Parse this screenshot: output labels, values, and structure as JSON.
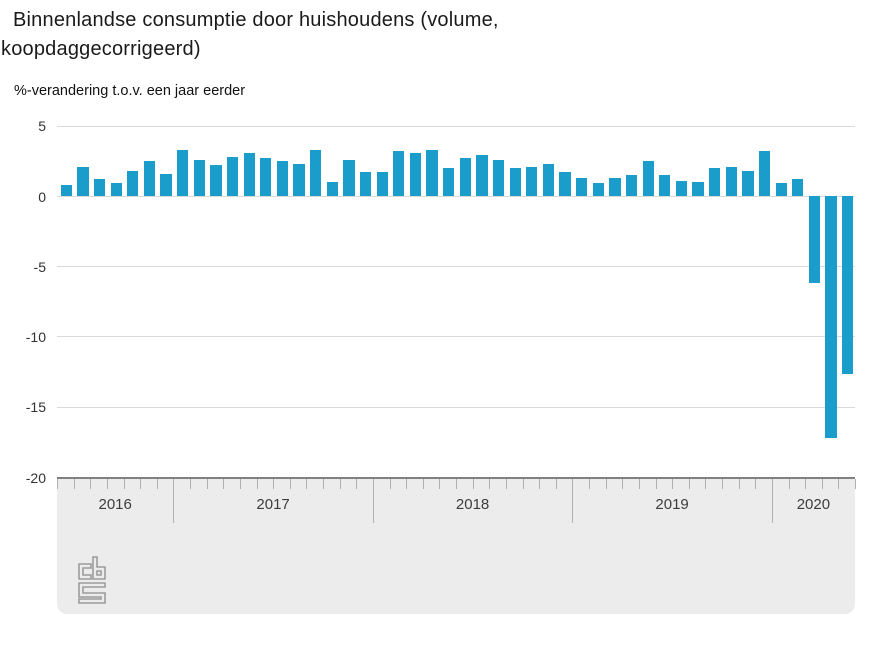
{
  "title": "Binnenlandse consumptie door huishoudens (volume, koopdaggecorrigeerd)",
  "subtitle": "%-verandering t.o.v. een jaar eerder",
  "chart_data": {
    "type": "bar",
    "title": "Binnenlandse consumptie door huishoudens (volume, koopdaggecorrigeerd)",
    "ylabel": "%-verandering t.o.v. een jaar eerder",
    "unit": "%",
    "ylim": [
      -20,
      5
    ],
    "yticks": [
      5,
      0,
      -5,
      -10,
      -15,
      -20
    ],
    "grid": true,
    "legend_position": "none",
    "x_axis": {
      "years": [
        {
          "label": "2016",
          "months": 7
        },
        {
          "label": "2017",
          "months": 12
        },
        {
          "label": "2018",
          "months": 12
        },
        {
          "label": "2019",
          "months": 12
        },
        {
          "label": "2020",
          "months": 5
        }
      ],
      "first_month": "2016-06",
      "last_month": "2020-05"
    },
    "categories": [
      "2016-06",
      "2016-07",
      "2016-08",
      "2016-09",
      "2016-10",
      "2016-11",
      "2016-12",
      "2017-01",
      "2017-02",
      "2017-03",
      "2017-04",
      "2017-05",
      "2017-06",
      "2017-07",
      "2017-08",
      "2017-09",
      "2017-10",
      "2017-11",
      "2017-12",
      "2018-01",
      "2018-02",
      "2018-03",
      "2018-04",
      "2018-05",
      "2018-06",
      "2018-07",
      "2018-08",
      "2018-09",
      "2018-10",
      "2018-11",
      "2018-12",
      "2019-01",
      "2019-02",
      "2019-03",
      "2019-04",
      "2019-05",
      "2019-06",
      "2019-07",
      "2019-08",
      "2019-09",
      "2019-10",
      "2019-11",
      "2019-12",
      "2020-01",
      "2020-02",
      "2020-03",
      "2020-04",
      "2020-05"
    ],
    "series": [
      {
        "name": "%-verandering t.o.v. een jaar eerder",
        "values": [
          0.8,
          2.1,
          1.2,
          0.9,
          1.8,
          2.5,
          1.6,
          3.3,
          2.6,
          2.2,
          2.8,
          3.1,
          2.7,
          2.5,
          2.3,
          3.3,
          1.0,
          2.6,
          1.7,
          1.7,
          3.2,
          3.1,
          3.3,
          2.0,
          2.7,
          2.9,
          2.6,
          2.0,
          2.1,
          2.3,
          1.7,
          1.3,
          0.9,
          1.3,
          1.5,
          2.5,
          1.5,
          1.1,
          1.0,
          2.0,
          2.1,
          1.8,
          3.2,
          0.9,
          1.2,
          -6.2,
          -17.2,
          -12.7
        ]
      }
    ]
  },
  "colors": {
    "bar": "#1a9dca",
    "gridline": "#d9d9d9",
    "axis_line": "#808080",
    "band_bg": "#ececec",
    "tick": "#b0b0b0",
    "text": "#1a1a1a",
    "axis_text": "#3d3d3d",
    "logo": "#9c9c9c"
  },
  "logo": {
    "name": "cbs-logo"
  }
}
